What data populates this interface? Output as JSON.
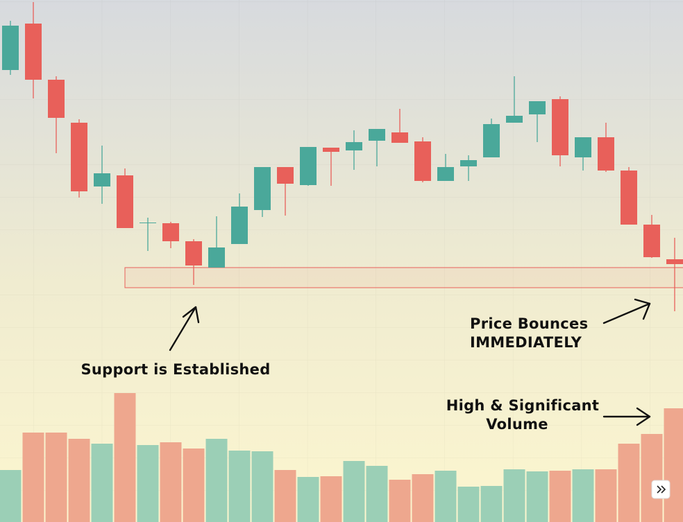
{
  "chart_data": {
    "type": "candlestick",
    "open": [
      652,
      719,
      638,
      576,
      484,
      500,
      431,
      431,
      405,
      367,
      401,
      450,
      512,
      486,
      540,
      536,
      550,
      562,
      549,
      492,
      513,
      526,
      576,
      588,
      610,
      526,
      555,
      507,
      429,
      379
    ],
    "high": [
      723,
      750,
      643,
      581,
      543,
      510,
      439,
      433,
      408,
      441,
      474,
      512,
      512,
      541,
      540,
      565,
      567,
      596,
      555,
      531,
      529,
      582,
      643,
      607,
      614,
      555,
      576,
      512,
      443,
      410
    ],
    "low": [
      645,
      611,
      532,
      468,
      459,
      424,
      391,
      395,
      342,
      367,
      401,
      440,
      442,
      485,
      485,
      508,
      513,
      547,
      490,
      492,
      492,
      526,
      576,
      548,
      513,
      507,
      505,
      429,
      381,
      304
    ],
    "close": [
      716,
      638,
      583,
      477,
      503,
      424,
      432,
      405,
      370,
      396,
      455,
      512,
      488,
      541,
      534,
      548,
      567,
      547,
      492,
      512,
      522,
      574,
      586,
      607,
      529,
      555,
      507,
      429,
      382,
      372
    ],
    "volume": [
      75,
      129,
      129,
      120,
      113,
      186,
      111,
      115,
      106,
      120,
      103,
      102,
      75,
      65,
      66,
      88,
      81,
      61,
      69,
      74,
      51,
      52,
      76,
      73,
      74,
      76,
      76,
      113,
      127,
      164
    ],
    "up_color": "#4aa89a",
    "down_color": "#e8605a",
    "volume_up_color": "#9bcfb6",
    "volume_down_color": "#eea78e",
    "ylim": [
      0,
      753
    ],
    "volume_ylim": [
      0,
      753
    ],
    "support_zone": {
      "high": 367,
      "low": 338
    },
    "annotations": {
      "support": "Support is Established",
      "bounce_1": "Price Bounces",
      "bounce_2": "IMMEDIATELY",
      "volume_1": "High & Significant",
      "volume_2": "Volume"
    }
  }
}
